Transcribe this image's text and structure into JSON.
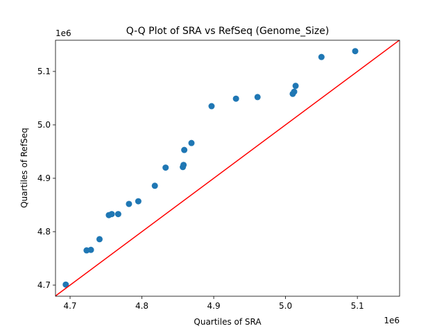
{
  "chart_data": {
    "type": "scatter",
    "title": "Q-Q Plot of SRA vs RefSeq (Genome_Size)",
    "x_label": "Quartiles of SRA",
    "y_label": "Quartiles of RefSeq",
    "x_offset": "1e6",
    "y_offset": "1e6",
    "x": [
      4.694,
      4.723,
      4.729,
      4.741,
      4.754,
      4.758,
      4.767,
      4.782,
      4.795,
      4.818,
      4.833,
      4.857,
      4.858,
      4.859,
      4.869,
      4.897,
      4.931,
      4.961,
      5.01,
      5.012,
      5.014,
      5.05,
      5.097
    ],
    "values": [
      4.701,
      4.765,
      4.766,
      4.786,
      4.831,
      4.833,
      4.833,
      4.852,
      4.857,
      4.886,
      4.92,
      4.921,
      4.925,
      4.953,
      4.966,
      5.035,
      5.049,
      5.052,
      5.058,
      5.062,
      5.073,
      5.127,
      5.138
    ],
    "color": "#1f77b4",
    "reference_line_color": "#ff0000",
    "xlim": [
      4.6797,
      5.1588
    ],
    "ylim": [
      4.6792,
      5.1584
    ],
    "xticks": [
      4.7,
      4.8,
      4.9,
      5.0,
      5.1
    ],
    "yticks": [
      4.7,
      4.8,
      4.9,
      5.0,
      5.1
    ]
  }
}
